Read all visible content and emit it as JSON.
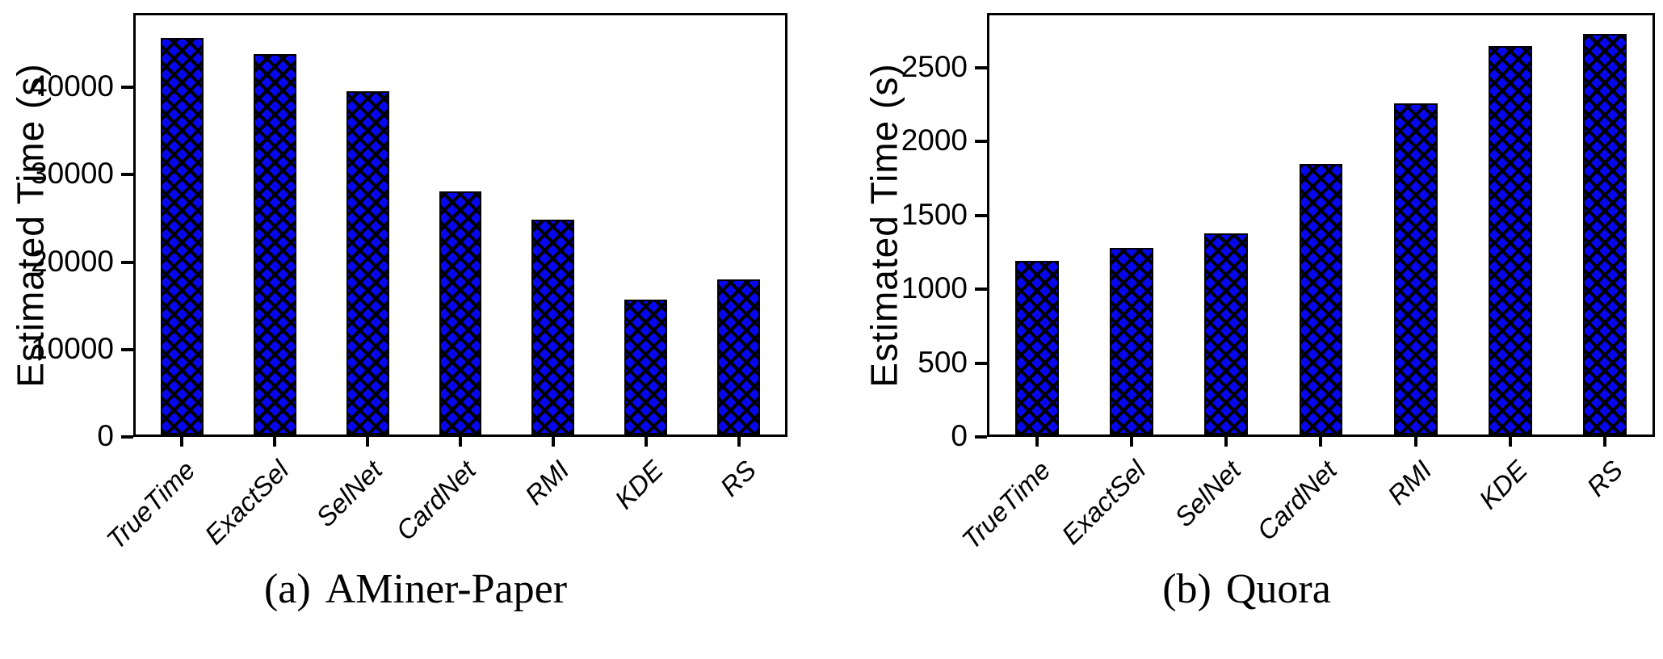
{
  "chart_data": [
    {
      "type": "bar",
      "caption_label": "(a)",
      "caption_title": "AMiner-Paper",
      "ylabel": "Estimated Time (s)",
      "categories": [
        "TrueTime",
        "ExactSel",
        "SelNet",
        "CardNet",
        "RMI",
        "KDE",
        "RS"
      ],
      "values": [
        45900,
        44000,
        39700,
        28100,
        24900,
        15600,
        17900
      ],
      "yticks": [
        0,
        10000,
        20000,
        30000,
        40000
      ],
      "ylim": [
        0,
        48500
      ],
      "bar_color": "#0707ee",
      "hatch": "xx",
      "grid": false,
      "legend": "none"
    },
    {
      "type": "bar",
      "caption_label": "(b)",
      "caption_title": "Quora",
      "ylabel": "Estimated Time (s)",
      "categories": [
        "TrueTime",
        "ExactSel",
        "SelNet",
        "CardNet",
        "RMI",
        "KDE",
        "RS"
      ],
      "values": [
        1190,
        1280,
        1375,
        1855,
        2265,
        2660,
        2745
      ],
      "yticks": [
        0,
        500,
        1000,
        1500,
        2000,
        2500
      ],
      "ylim": [
        0,
        2870
      ],
      "bar_color": "#0707ee",
      "hatch": "xx",
      "grid": false,
      "legend": "none"
    }
  ]
}
